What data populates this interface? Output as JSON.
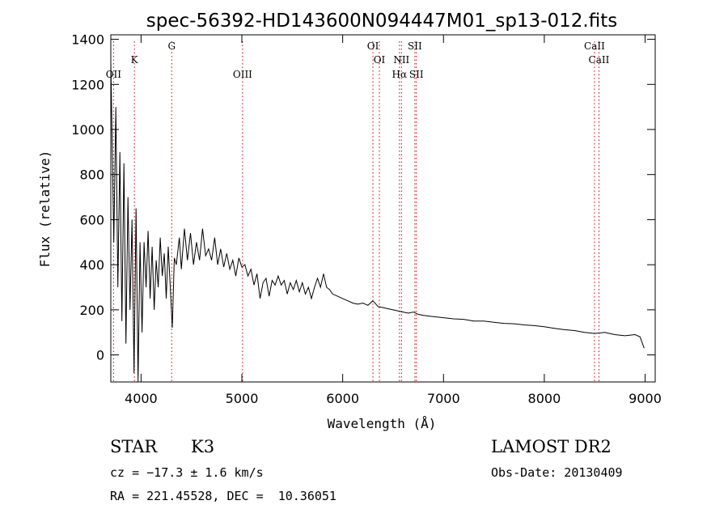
{
  "chart_data": {
    "type": "line",
    "title": "spec-56392-HD143600N094447M01_sp13-012.fits",
    "xlabel": "Wavelength (Å)",
    "ylabel": "Flux (relative)",
    "xlim": [
      3700,
      9100
    ],
    "ylim": [
      -120,
      1420
    ],
    "x_ticks": [
      4000,
      5000,
      6000,
      7000,
      8000,
      9000
    ],
    "y_ticks": [
      0,
      200,
      400,
      600,
      800,
      1000,
      1200,
      1400
    ],
    "grid": false,
    "series": [
      {
        "points": [
          [
            3700,
            1300
          ],
          [
            3730,
            500
          ],
          [
            3750,
            1100
          ],
          [
            3770,
            300
          ],
          [
            3790,
            900
          ],
          [
            3810,
            150
          ],
          [
            3830,
            850
          ],
          [
            3850,
            50
          ],
          [
            3870,
            700
          ],
          [
            3890,
            200
          ],
          [
            3910,
            600
          ],
          [
            3930,
            -80
          ],
          [
            3950,
            650
          ],
          [
            3970,
            -120
          ],
          [
            3990,
            500
          ],
          [
            4010,
            100
          ],
          [
            4030,
            500
          ],
          [
            4050,
            300
          ],
          [
            4070,
            550
          ],
          [
            4090,
            250
          ],
          [
            4110,
            480
          ],
          [
            4130,
            200
          ],
          [
            4150,
            420
          ],
          [
            4170,
            300
          ],
          [
            4190,
            520
          ],
          [
            4210,
            350
          ],
          [
            4230,
            450
          ],
          [
            4250,
            250
          ],
          [
            4270,
            480
          ],
          [
            4290,
            300
          ],
          [
            4310,
            120
          ],
          [
            4330,
            430
          ],
          [
            4350,
            400
          ],
          [
            4380,
            520
          ],
          [
            4400,
            380
          ],
          [
            4430,
            560
          ],
          [
            4460,
            420
          ],
          [
            4490,
            540
          ],
          [
            4520,
            400
          ],
          [
            4550,
            500
          ],
          [
            4580,
            420
          ],
          [
            4610,
            560
          ],
          [
            4640,
            440
          ],
          [
            4670,
            470
          ],
          [
            4700,
            420
          ],
          [
            4730,
            520
          ],
          [
            4760,
            400
          ],
          [
            4790,
            470
          ],
          [
            4820,
            390
          ],
          [
            4850,
            450
          ],
          [
            4880,
            380
          ],
          [
            4910,
            420
          ],
          [
            4940,
            350
          ],
          [
            4970,
            430
          ],
          [
            5000,
            390
          ],
          [
            5030,
            400
          ],
          [
            5060,
            350
          ],
          [
            5090,
            380
          ],
          [
            5120,
            310
          ],
          [
            5150,
            360
          ],
          [
            5180,
            250
          ],
          [
            5210,
            320
          ],
          [
            5240,
            340
          ],
          [
            5270,
            260
          ],
          [
            5300,
            330
          ],
          [
            5330,
            310
          ],
          [
            5360,
            350
          ],
          [
            5390,
            310
          ],
          [
            5420,
            330
          ],
          [
            5450,
            270
          ],
          [
            5480,
            320
          ],
          [
            5510,
            290
          ],
          [
            5540,
            330
          ],
          [
            5570,
            280
          ],
          [
            5600,
            320
          ],
          [
            5630,
            270
          ],
          [
            5660,
            300
          ],
          [
            5690,
            250
          ],
          [
            5720,
            300
          ],
          [
            5750,
            340
          ],
          [
            5780,
            300
          ],
          [
            5810,
            360
          ],
          [
            5840,
            300
          ],
          [
            5870,
            290
          ],
          [
            5900,
            270
          ],
          [
            5950,
            260
          ],
          [
            6000,
            250
          ],
          [
            6050,
            240
          ],
          [
            6100,
            230
          ],
          [
            6150,
            225
          ],
          [
            6200,
            230
          ],
          [
            6250,
            220
          ],
          [
            6300,
            240
          ],
          [
            6350,
            215
          ],
          [
            6400,
            210
          ],
          [
            6450,
            205
          ],
          [
            6500,
            200
          ],
          [
            6550,
            195
          ],
          [
            6600,
            190
          ],
          [
            6650,
            185
          ],
          [
            6700,
            190
          ],
          [
            6750,
            180
          ],
          [
            6800,
            175
          ],
          [
            6900,
            170
          ],
          [
            7000,
            165
          ],
          [
            7100,
            160
          ],
          [
            7200,
            158
          ],
          [
            7300,
            150
          ],
          [
            7400,
            150
          ],
          [
            7500,
            145
          ],
          [
            7600,
            140
          ],
          [
            7700,
            138
          ],
          [
            7800,
            133
          ],
          [
            7900,
            130
          ],
          [
            8000,
            125
          ],
          [
            8100,
            118
          ],
          [
            8200,
            112
          ],
          [
            8300,
            108
          ],
          [
            8400,
            100
          ],
          [
            8500,
            95
          ],
          [
            8600,
            100
          ],
          [
            8700,
            90
          ],
          [
            8800,
            85
          ],
          [
            8900,
            90
          ],
          [
            8950,
            80
          ],
          [
            8990,
            30
          ]
        ]
      }
    ],
    "line_markers": [
      {
        "label": "OII",
        "x": 3727
      },
      {
        "label": "K",
        "x": 3934
      },
      {
        "label": "G",
        "x": 4304
      },
      {
        "label": "OIII",
        "x": 5007
      },
      {
        "label": "OI",
        "x": 6300
      },
      {
        "label": "OI",
        "x": 6364
      },
      {
        "label": "NII",
        "x": 6583
      },
      {
        "label": "Hα",
        "x": 6563
      },
      {
        "label": "SII",
        "x": 6716
      },
      {
        "label": "SII",
        "x": 6731
      },
      {
        "label": "CaII",
        "x": 8498
      },
      {
        "label": "CaII",
        "x": 8542
      }
    ]
  },
  "info": {
    "class": "STAR",
    "subclass": "K3",
    "survey": "LAMOST DR2",
    "cz": "cz = −17.3 ± 1.6 km/s",
    "obs_date": "Obs-Date: 20130409",
    "radec": "RA = 221.45528, DEC =  10.36051"
  }
}
